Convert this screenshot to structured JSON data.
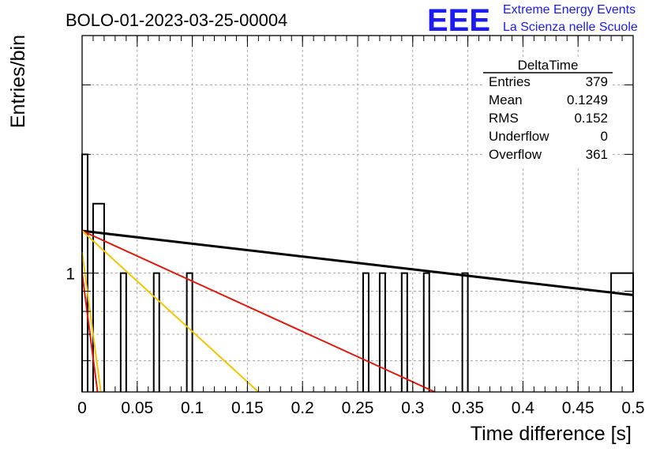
{
  "chart_data": {
    "type": "bar",
    "title": "BOLO-01-2023-03-25-00004",
    "xlabel": "Time difference [s]",
    "ylabel": "Entries/bin",
    "xlim": [
      0,
      0.5
    ],
    "ylim": [
      0.5,
      4
    ],
    "yscale": "log",
    "grid": true,
    "x_ticks": [
      "0",
      "0.05",
      "0.1",
      "0.15",
      "0.2",
      "0.25",
      "0.3",
      "0.35",
      "0.4",
      "0.45",
      "0.5"
    ],
    "y_tick_labels": [
      "1"
    ],
    "histogram_bins": [
      {
        "x0": 0.0,
        "x1": 0.005,
        "count": 2
      },
      {
        "x0": 0.01,
        "x1": 0.02,
        "count": 1.5
      },
      {
        "x0": 0.035,
        "x1": 0.04,
        "count": 1
      },
      {
        "x0": 0.065,
        "x1": 0.07,
        "count": 1
      },
      {
        "x0": 0.095,
        "x1": 0.1,
        "count": 1
      },
      {
        "x0": 0.255,
        "x1": 0.26,
        "count": 1
      },
      {
        "x0": 0.27,
        "x1": 0.275,
        "count": 1
      },
      {
        "x0": 0.29,
        "x1": 0.295,
        "count": 1
      },
      {
        "x0": 0.31,
        "x1": 0.315,
        "count": 1
      },
      {
        "x0": 0.345,
        "x1": 0.35,
        "count": 1
      },
      {
        "x0": 0.48,
        "x1": 0.5,
        "count": 1
      }
    ],
    "series": [
      {
        "color": "#000000",
        "points": [
          [
            0.0,
            1.28
          ],
          [
            0.5,
            0.88
          ]
        ]
      },
      {
        "color": "#e3170a",
        "points": [
          [
            0.0,
            1.28
          ],
          [
            0.32,
            0.5
          ]
        ]
      },
      {
        "color": "#f5c400",
        "points": [
          [
            0.0,
            1.28
          ],
          [
            0.16,
            0.5
          ]
        ]
      },
      {
        "color": "#f5c400",
        "points": [
          [
            0.0,
            1.13
          ],
          [
            0.017,
            0.5
          ]
        ]
      },
      {
        "color": "#e3170a",
        "points": [
          [
            0.0,
            1.0
          ],
          [
            0.014,
            0.5
          ]
        ]
      }
    ],
    "stats_box": {
      "title": "DeltaTime",
      "rows": [
        {
          "label": "Entries",
          "value": "379"
        },
        {
          "label": "Mean",
          "value": "0.1249"
        },
        {
          "label": "RMS",
          "value": "0.152"
        },
        {
          "label": "Underflow",
          "value": "0"
        },
        {
          "label": "Overflow",
          "value": "361"
        }
      ]
    }
  },
  "logo": {
    "letters": "EEE",
    "line1": "Extreme Energy Events",
    "line2": "La Scienza nelle Scuole",
    "color": "#1b1bf2"
  }
}
